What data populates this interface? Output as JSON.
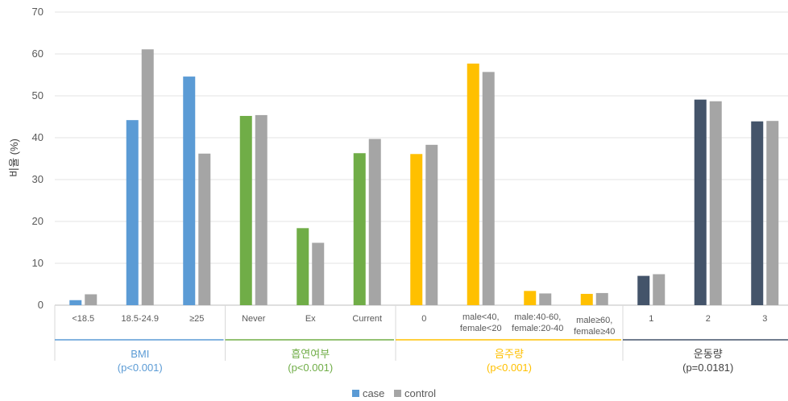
{
  "chart_data": {
    "type": "bar",
    "ylabel": "비율 (%)",
    "ylim": [
      0,
      70
    ],
    "yticks": [
      0,
      10,
      20,
      30,
      40,
      50,
      60,
      70
    ],
    "grid": true,
    "legend_position": "bottom",
    "series_names": [
      "case",
      "control"
    ],
    "series_colors": {
      "control": "#a5a5a5"
    },
    "groups": [
      {
        "name": "BMI",
        "p": "(p<0.001)",
        "color": "#5b9bd5",
        "categories": [
          "<18.5",
          "18.5-24.9",
          "≥25"
        ],
        "case": [
          1.2,
          44.2,
          54.6
        ],
        "control": [
          2.6,
          61.1,
          36.2
        ]
      },
      {
        "name": "흡연여부",
        "p": "(p<0.001)",
        "color": "#70ad47",
        "categories": [
          "Never",
          "Ex",
          "Current"
        ],
        "case": [
          45.2,
          18.4,
          36.3
        ],
        "control": [
          45.4,
          14.9,
          39.7
        ]
      },
      {
        "name": "음주량",
        "p": "(p<0.001)",
        "color": "#ffc000",
        "categories": [
          "0",
          "male<40, female<20",
          "male:40-60, female:20-40",
          "male≥60, female≥40"
        ],
        "case": [
          36.1,
          57.7,
          3.4,
          2.7
        ],
        "control": [
          38.3,
          55.7,
          2.8,
          2.9
        ]
      },
      {
        "name": "운동량",
        "p": "(p=0.0181)",
        "color": "#44546a",
        "categories": [
          "1",
          "2",
          "3"
        ],
        "case": [
          7.0,
          49.1,
          43.9
        ],
        "control": [
          7.4,
          48.7,
          44.0
        ]
      }
    ]
  }
}
